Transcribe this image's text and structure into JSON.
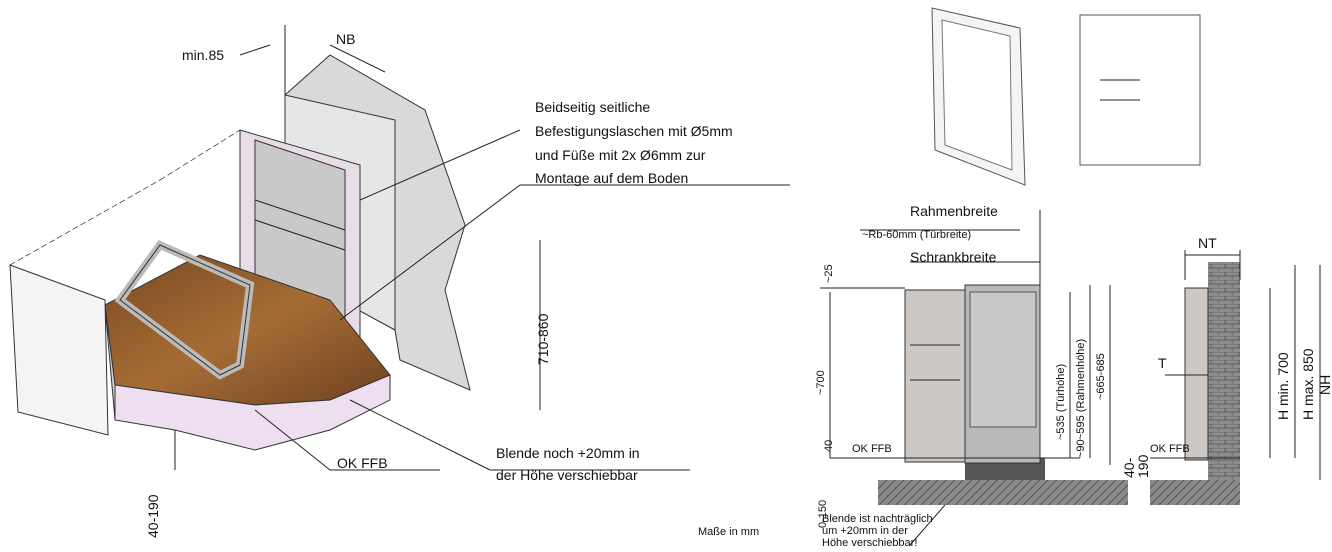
{
  "left": {
    "min_depth": "min.85",
    "niche_width": "NB",
    "fastening_note": [
      "Beidseitig seitliche",
      "Befestigungslaschen mit Ø5mm",
      "und Füße mit 2x Ø6mm zur",
      "Montage auf dem Boden"
    ],
    "height_range": "710-860",
    "panel_note": [
      "Blende noch +20mm in",
      "der Höhe verschiebbar"
    ],
    "floor_level": "OK FFB",
    "screed_range": "40-190"
  },
  "units_note": "Maße in mm",
  "front_view": {
    "frame_width": "Rahmenbreite",
    "door_width": "~Rb-60mm (Türbreite)",
    "cabinet_width": "Schrankbreite",
    "top_offset": "~25",
    "total_height": "~700",
    "door_height": "~535 (Türhöhe)",
    "frame_height": "~595 (Rahmenhöhe)",
    "outer_height": "~665-685",
    "bottom_offset": "~90",
    "foot_height": "40",
    "floor_level": "OK FFB",
    "screed_range": "0-150",
    "panel_note": [
      "Blende ist nachträglich",
      "um +20mm in der",
      "Höhe verschiebbar!"
    ],
    "screed_right": [
      "40-",
      "190"
    ]
  },
  "side_view": {
    "niche_depth": "NT",
    "depth": "T",
    "floor_level": "OK FFB",
    "h_min": "H min. 700",
    "h_max": "H max. 850",
    "niche_height": "NH"
  }
}
